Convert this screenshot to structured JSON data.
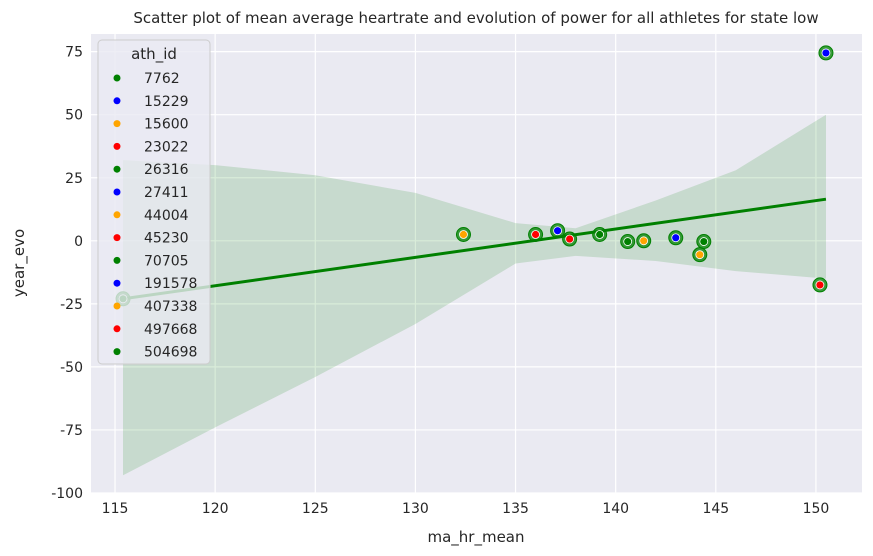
{
  "chart_data": {
    "type": "scatter",
    "title": "Scatter plot of mean average heartrate and evolution of power for all athletes for state low",
    "xlabel": "ma_hr_mean",
    "ylabel": "year_evo",
    "xlim": [
      113.8,
      152.3
    ],
    "ylim": [
      -100,
      82
    ],
    "xticks": [
      115,
      120,
      125,
      130,
      135,
      140,
      145,
      150
    ],
    "yticks": [
      -100,
      -75,
      -50,
      -25,
      0,
      25,
      50,
      75
    ],
    "grid": true,
    "legend": {
      "title": "ath_id",
      "placement": "top-left",
      "entries": [
        {
          "label": "7762",
          "color": "#008000"
        },
        {
          "label": "15229",
          "color": "#0000ff"
        },
        {
          "label": "15600",
          "color": "#ffa500"
        },
        {
          "label": "23022",
          "color": "#ff0000"
        },
        {
          "label": "26316",
          "color": "#008000"
        },
        {
          "label": "27411",
          "color": "#0000ff"
        },
        {
          "label": "44004",
          "color": "#ffa500"
        },
        {
          "label": "45230",
          "color": "#ff0000"
        },
        {
          "label": "70705",
          "color": "#008000"
        },
        {
          "label": "191578",
          "color": "#0000ff"
        },
        {
          "label": "407338",
          "color": "#ffa500"
        },
        {
          "label": "497668",
          "color": "#ff0000"
        },
        {
          "label": "504698",
          "color": "#008000"
        }
      ]
    },
    "points": [
      {
        "x": 115.4,
        "y": -23,
        "color": "#008000"
      },
      {
        "x": 132.4,
        "y": 2.5,
        "color": "#ffa500"
      },
      {
        "x": 136.0,
        "y": 2.5,
        "color": "#ff0000"
      },
      {
        "x": 137.1,
        "y": 4.0,
        "color": "#0000ff"
      },
      {
        "x": 137.7,
        "y": 0.7,
        "color": "#ff0000"
      },
      {
        "x": 139.2,
        "y": 2.5,
        "color": "#008000"
      },
      {
        "x": 140.6,
        "y": -0.3,
        "color": "#008000"
      },
      {
        "x": 141.4,
        "y": 0.0,
        "color": "#ffa500"
      },
      {
        "x": 143.0,
        "y": 1.2,
        "color": "#0000ff"
      },
      {
        "x": 144.2,
        "y": -5.5,
        "color": "#ffa500"
      },
      {
        "x": 144.4,
        "y": -0.3,
        "color": "#008000"
      },
      {
        "x": 150.2,
        "y": -17.5,
        "color": "#ff0000"
      },
      {
        "x": 150.5,
        "y": 74.5,
        "color": "#0000ff"
      }
    ],
    "regression": {
      "color": "#008000",
      "line": [
        [
          115.4,
          -23
        ],
        [
          150.5,
          16.5
        ]
      ],
      "ci_upper": [
        [
          115.4,
          32
        ],
        [
          120,
          30
        ],
        [
          125,
          26
        ],
        [
          130,
          19
        ],
        [
          135,
          7
        ],
        [
          138,
          5
        ],
        [
          142,
          16
        ],
        [
          146,
          28
        ],
        [
          150.5,
          50
        ]
      ],
      "ci_lower": [
        [
          115.4,
          -93
        ],
        [
          120,
          -74
        ],
        [
          125,
          -54
        ],
        [
          130,
          -33
        ],
        [
          135,
          -9
        ],
        [
          138,
          -6
        ],
        [
          142,
          -8
        ],
        [
          146,
          -12
        ],
        [
          150.5,
          -15
        ]
      ]
    }
  }
}
